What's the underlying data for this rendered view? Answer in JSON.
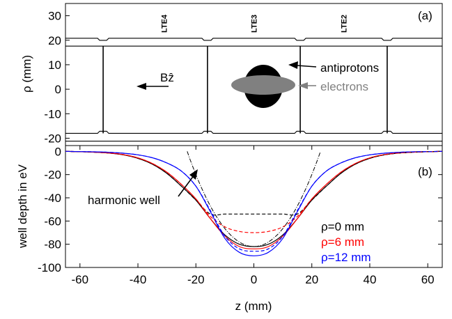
{
  "chart_data": [
    {
      "type": "diagram",
      "panel_label": "(a)",
      "ylabel": "ρ (mm)",
      "ylim": [
        -23,
        35
      ],
      "y_ticks": [
        -20,
        -10,
        0,
        10,
        20,
        30
      ],
      "xlim": [
        -65,
        65
      ],
      "electrode_labels": [
        {
          "text": "LTE4",
          "z": -31
        },
        {
          "text": "LTE3",
          "z": 0
        },
        {
          "text": "LTE2",
          "z": 31
        }
      ],
      "electrode_gaps_z": [
        -52,
        -16,
        16,
        46
      ],
      "annotations": {
        "field": "Bẑ",
        "antiprotons": "antiprotons",
        "electrons": "electrons"
      },
      "colors": {
        "antiprotons": "#000000",
        "electrons": "#808080"
      }
    },
    {
      "type": "line",
      "panel_label": "(b)",
      "xlabel": "z (mm)",
      "ylabel": "well depth in eV",
      "xlim": [
        -65,
        65
      ],
      "ylim": [
        -100,
        5
      ],
      "x_ticks": [
        -60,
        -40,
        -20,
        0,
        20,
        40,
        60
      ],
      "y_ticks": [
        0,
        -20,
        -40,
        -60,
        -80,
        -100
      ],
      "x": [
        -65,
        -60,
        -55,
        -50,
        -45,
        -40,
        -35,
        -30,
        -25,
        -20,
        -15,
        -10,
        -5,
        0,
        5,
        10,
        15,
        20,
        25,
        30,
        35,
        40,
        45,
        50,
        55,
        60,
        65
      ],
      "series": [
        {
          "name": "ρ=0 mm",
          "color": "#000000",
          "style": "solid",
          "values": [
            0,
            -0.3,
            -0.7,
            -1.5,
            -3,
            -6,
            -11,
            -19,
            -30,
            -42,
            -58,
            -72,
            -80,
            -82,
            -80,
            -72,
            -58,
            -42,
            -30,
            -19,
            -11,
            -6,
            -3,
            -1.5,
            -0.7,
            -0.3,
            0
          ]
        },
        {
          "name": "ρ=6 mm",
          "color": "#ff0000",
          "style": "solid",
          "values": [
            0,
            -0.3,
            -0.7,
            -1.4,
            -2.8,
            -5.6,
            -10.5,
            -18,
            -28.5,
            -41,
            -58,
            -73,
            -82,
            -84,
            -82,
            -73,
            -58,
            -41,
            -28.5,
            -18,
            -10.5,
            -5.6,
            -2.8,
            -1.4,
            -0.7,
            -0.3,
            0
          ]
        },
        {
          "name": "ρ=12 mm",
          "color": "#0000ff",
          "style": "solid",
          "values": [
            0,
            -0.2,
            -0.4,
            -0.8,
            -1.6,
            -3,
            -5.5,
            -10,
            -17,
            -30,
            -52,
            -75,
            -87,
            -90,
            -87,
            -75,
            -52,
            -30,
            -17,
            -10,
            -5.5,
            -3,
            -1.6,
            -0.8,
            -0.4,
            -0.2,
            0
          ]
        },
        {
          "name": "",
          "color": "#000000",
          "style": "dashed",
          "values": [
            0,
            -0.3,
            -0.7,
            -1.5,
            -3,
            -6,
            -11,
            -19,
            -30,
            -42,
            -54,
            -54,
            -54,
            -54,
            -54,
            -54,
            -54,
            -42,
            -30,
            -19,
            -11,
            -6,
            -3,
            -1.5,
            -0.7,
            -0.3,
            0
          ]
        },
        {
          "name": "",
          "color": "#ff0000",
          "style": "dashed",
          "values": [
            0,
            -0.3,
            -0.7,
            -1.4,
            -2.8,
            -5.6,
            -10.5,
            -18,
            -28.5,
            -41,
            -56,
            -65,
            -69,
            -70,
            -69,
            -65,
            -56,
            -41,
            -28.5,
            -18,
            -10.5,
            -5.6,
            -2.8,
            -1.4,
            -0.7,
            -0.3,
            0
          ]
        },
        {
          "name": "",
          "color": "#0000ff",
          "style": "dashed",
          "values": [
            0,
            -0.2,
            -0.4,
            -0.8,
            -1.6,
            -3,
            -5.5,
            -10,
            -17,
            -30,
            -51,
            -73,
            -84,
            -86,
            -84,
            -73,
            -51,
            -30,
            -17,
            -10,
            -5.5,
            -3,
            -1.6,
            -0.8,
            -0.4,
            -0.2,
            0
          ]
        }
      ],
      "harmonic_fit": {
        "color": "#000000",
        "style": "dash-dot",
        "z_range": [
          -23,
          23
        ],
        "center": -82,
        "curvature": 0.155
      },
      "annotation": "harmonic well",
      "legend_placement": "bottom-right"
    }
  ]
}
